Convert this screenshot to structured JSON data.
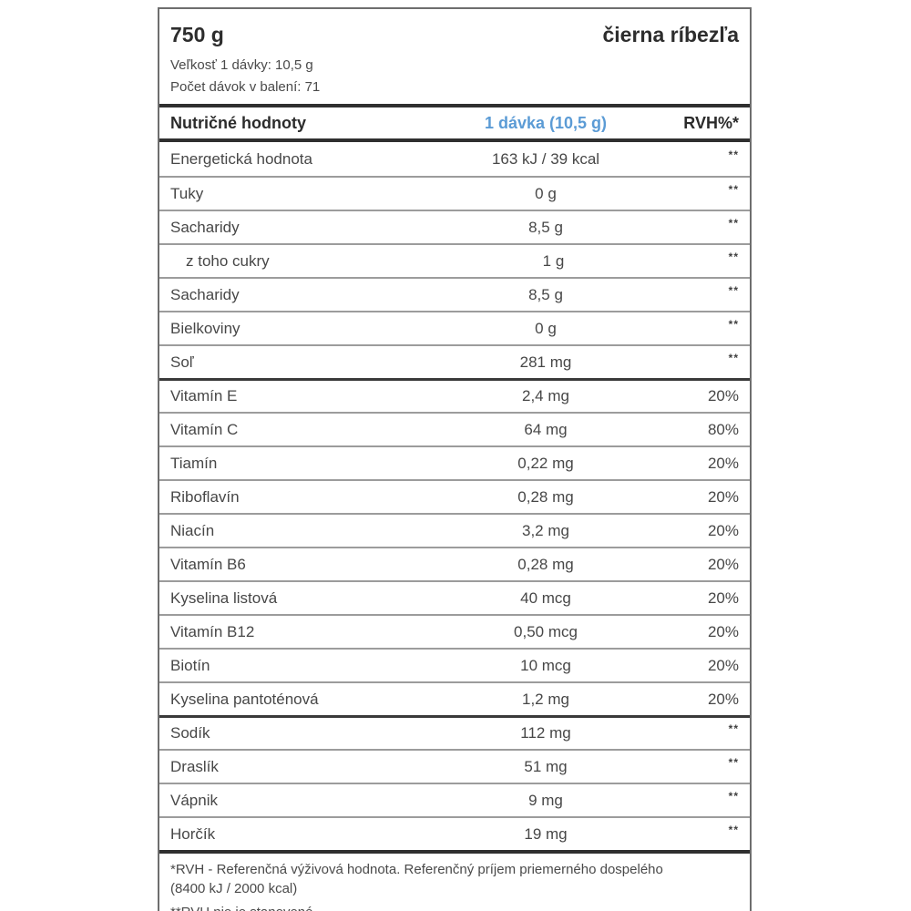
{
  "product": {
    "weight": "750 g",
    "flavor": "čierna ríbezľa"
  },
  "serving": {
    "size_line": "Veľkosť 1 dávky: 10,5 g",
    "count_line": "Počet dávok v balení: 71"
  },
  "table": {
    "header": {
      "col_nutrients": "Nutričné hodnoty",
      "col_serving": "1 dávka (10,5 g)",
      "col_rvh": "RVH%*"
    },
    "rows": [
      {
        "label": "Energetická hodnota",
        "value": "163 kJ / 39 kcal",
        "rvh": "**",
        "section": "basic",
        "indent": false
      },
      {
        "label": "Tuky",
        "value": "0 g",
        "rvh": "**",
        "section": "basic",
        "indent": false
      },
      {
        "label": "Sacharidy",
        "value": "8,5 g",
        "rvh": "**",
        "section": "basic",
        "indent": false
      },
      {
        "label": "z toho cukry",
        "value": "1 g",
        "rvh": "**",
        "section": "basic",
        "indent": true
      },
      {
        "label": "Sacharidy",
        "value": "8,5 g",
        "rvh": "**",
        "section": "basic",
        "indent": false
      },
      {
        "label": "Bielkoviny",
        "value": "0 g",
        "rvh": "**",
        "section": "basic",
        "indent": false
      },
      {
        "label": "Soľ",
        "value": "281 mg",
        "rvh": "**",
        "section": "basic",
        "indent": false
      },
      {
        "label": "Vitamín E",
        "value": "2,4 mg",
        "rvh": "20%",
        "section": "vitamins",
        "indent": false
      },
      {
        "label": "Vitamín C",
        "value": "64 mg",
        "rvh": "80%",
        "section": "vitamins",
        "indent": false
      },
      {
        "label": "Tiamín",
        "value": "0,22 mg",
        "rvh": "20%",
        "section": "vitamins",
        "indent": false
      },
      {
        "label": "Riboflavín",
        "value": "0,28 mg",
        "rvh": "20%",
        "section": "vitamins",
        "indent": false
      },
      {
        "label": "Niacín",
        "value": "3,2 mg",
        "rvh": "20%",
        "section": "vitamins",
        "indent": false
      },
      {
        "label": "Vitamín B6",
        "value": "0,28 mg",
        "rvh": "20%",
        "section": "vitamins",
        "indent": false
      },
      {
        "label": "Kyselina listová",
        "value": "40 mcg",
        "rvh": "20%",
        "section": "vitamins",
        "indent": false
      },
      {
        "label": "Vitamín B12",
        "value": "0,50 mcg",
        "rvh": "20%",
        "section": "vitamins",
        "indent": false
      },
      {
        "label": "Biotín",
        "value": "10 mcg",
        "rvh": "20%",
        "section": "vitamins",
        "indent": false
      },
      {
        "label": "Kyselina pantoténová",
        "value": "1,2 mg",
        "rvh": "20%",
        "section": "vitamins",
        "indent": false
      },
      {
        "label": "Sodík",
        "value": "112 mg",
        "rvh": "**",
        "section": "minerals",
        "indent": false
      },
      {
        "label": "Draslík",
        "value": "51 mg",
        "rvh": "**",
        "section": "minerals",
        "indent": false
      },
      {
        "label": "Vápnik",
        "value": "9 mg",
        "rvh": "**",
        "section": "minerals",
        "indent": false
      },
      {
        "label": "Horčík",
        "value": "19 mg",
        "rvh": "**",
        "section": "minerals",
        "indent": false
      }
    ]
  },
  "footnotes": {
    "line1": "*RVH - Referenčná výživová hodnota. Referenčný príjem priemerného dospelého",
    "line2": "(8400 kJ / 2000 kcal)",
    "line3": "**RVH nie je stanovené"
  },
  "colors": {
    "accent_blue": "#5b9bd5",
    "text_dark": "#2b2b2b",
    "text_body": "#474747",
    "rule_dark": "#2f2f2f",
    "rule_light": "#9c9c9c",
    "box_border": "#6e6e6e"
  }
}
